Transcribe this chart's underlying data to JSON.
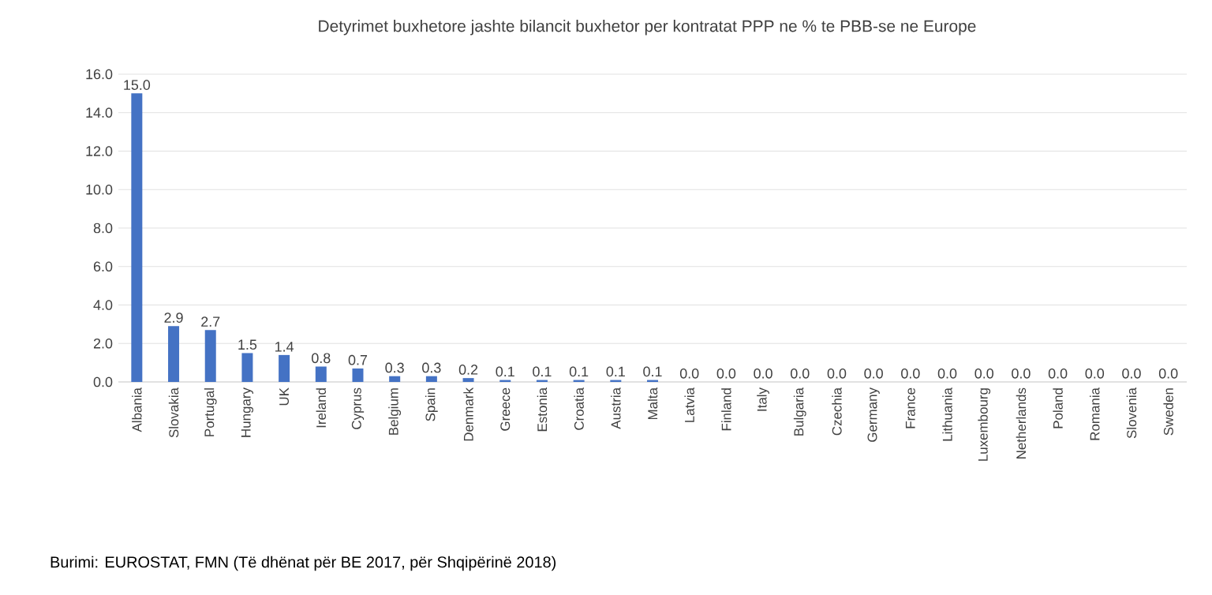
{
  "chart_data": {
    "type": "bar",
    "title": "Detyrimet buxhetore jashte bilancit buxhetor per kontratat PPP ne % te PBB-se ne Europe",
    "categories": [
      "Albania",
      "Slovakia",
      "Portugal",
      "Hungary",
      "UK",
      "Ireland",
      "Cyprus",
      "Belgium",
      "Spain",
      "Denmark",
      "Greece",
      "Estonia",
      "Croatia",
      "Austria",
      "Malta",
      "Latvia",
      "Finland",
      "Italy",
      "Bulgaria",
      "Czechia",
      "Germany",
      "France",
      "Lithuania",
      "Luxembourg",
      "Netherlands",
      "Poland",
      "Romania",
      "Slovenia",
      "Sweden"
    ],
    "values": [
      15.0,
      2.9,
      2.7,
      1.5,
      1.4,
      0.8,
      0.7,
      0.3,
      0.3,
      0.2,
      0.1,
      0.1,
      0.1,
      0.1,
      0.1,
      0.0,
      0.0,
      0.0,
      0.0,
      0.0,
      0.0,
      0.0,
      0.0,
      0.0,
      0.0,
      0.0,
      0.0,
      0.0,
      0.0
    ],
    "value_labels": [
      "15.0",
      "2.9",
      "2.7",
      "1.5",
      "1.4",
      "0.8",
      "0.7",
      "0.3",
      "0.3",
      "0.2",
      "0.1",
      "0.1",
      "0.1",
      "0.1",
      "0.1",
      "0.0",
      "0.0",
      "0.0",
      "0.0",
      "0.0",
      "0.0",
      "0.0",
      "0.0",
      "0.0",
      "0.0",
      "0.0",
      "0.0",
      "0.0",
      "0.0"
    ],
    "color": "#4472c4",
    "ylim": [
      0,
      16
    ],
    "yticks": [
      {
        "value": 0,
        "label": "0.0"
      },
      {
        "value": 2,
        "label": "2.0"
      },
      {
        "value": 4,
        "label": "4.0"
      },
      {
        "value": 6,
        "label": "6.0"
      },
      {
        "value": 8,
        "label": "8.0"
      },
      {
        "value": 10,
        "label": "10.0"
      },
      {
        "value": 12,
        "label": "12.0"
      },
      {
        "value": 14,
        "label": "14.0"
      },
      {
        "value": 16,
        "label": "16.0"
      }
    ],
    "grid": "y",
    "annotations": [
      "Burimi: EUROSTAT, FMN (Të dhënat për BE 2017, për Shqipërinë 2018)"
    ]
  }
}
